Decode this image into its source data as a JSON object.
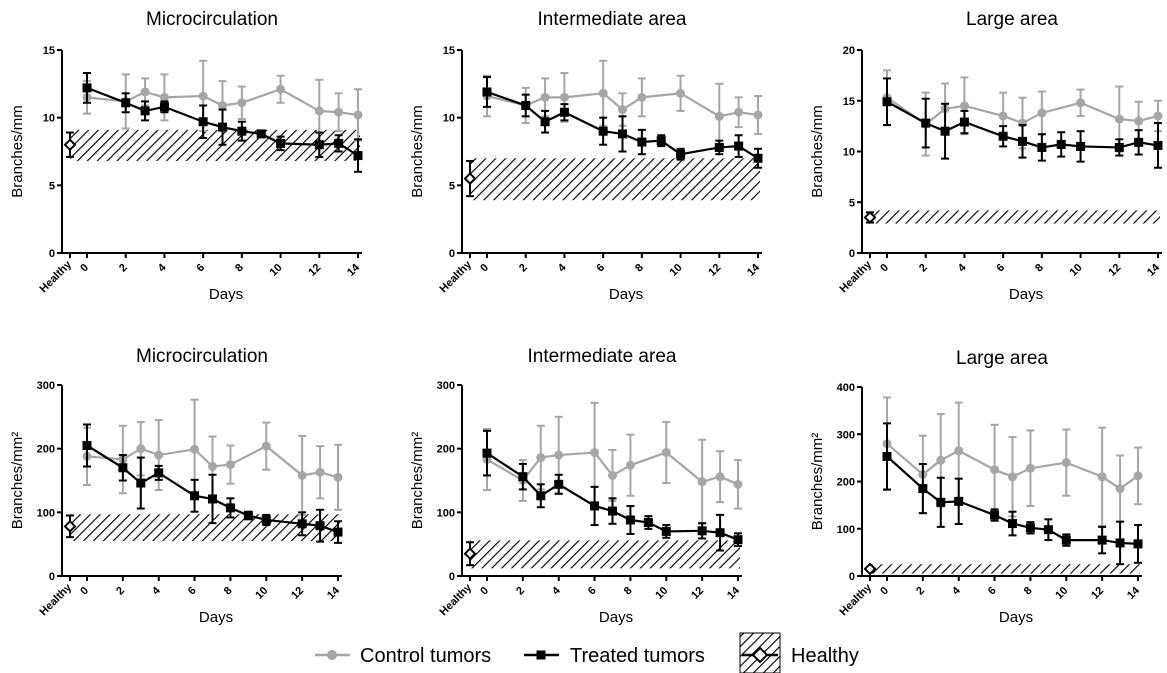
{
  "colors": {
    "control": "#a6a6a6",
    "treated": "#000000",
    "healthy": "#000000"
  },
  "legend": {
    "control": "Control tumors",
    "treated": "Treated tumors",
    "healthy": "Healthy"
  },
  "chart_data": [
    {
      "type": "line",
      "title": "Microcirculation",
      "xlabel": "Days",
      "ylabel": "Branches/mm",
      "ylim": [
        0,
        15
      ],
      "yticks": [
        "0",
        "5",
        "10",
        "15"
      ],
      "xticks": [
        "Healthy",
        "0",
        "2",
        "4",
        "6",
        "8",
        "10",
        "12",
        "14"
      ],
      "healthy": {
        "mean": 8.0,
        "err": 0.9,
        "band": [
          6.8,
          9.1
        ]
      },
      "series": [
        {
          "name": "Control tumors",
          "key": "control",
          "x": [
            0,
            2,
            3,
            4,
            6,
            7,
            8,
            10,
            12,
            13,
            14
          ],
          "y": [
            11.5,
            11.2,
            11.9,
            11.5,
            11.6,
            10.9,
            11.1,
            12.1,
            10.5,
            10.4,
            10.2
          ],
          "err": [
            1.2,
            2.0,
            1.0,
            1.7,
            2.6,
            1.8,
            1.2,
            1.0,
            2.3,
            1.4,
            1.9
          ]
        },
        {
          "name": "Treated tumors",
          "key": "treated",
          "x": [
            0,
            2,
            3,
            4,
            6,
            7,
            8,
            9,
            10,
            12,
            13,
            14
          ],
          "y": [
            12.2,
            11.1,
            10.5,
            10.8,
            9.7,
            9.3,
            9.0,
            8.8,
            8.1,
            8.0,
            8.1,
            7.2
          ],
          "err": [
            1.1,
            0.7,
            0.7,
            0.4,
            1.2,
            1.3,
            0.7,
            0.2,
            0.5,
            0.9,
            0.6,
            1.2
          ]
        }
      ]
    },
    {
      "type": "line",
      "title": "Intermediate area",
      "xlabel": "Days",
      "ylabel": "Branches/mm",
      "ylim": [
        0,
        15
      ],
      "yticks": [
        "0",
        "5",
        "10",
        "15"
      ],
      "xticks": [
        "Healthy",
        "0",
        "2",
        "4",
        "6",
        "8",
        "10",
        "12",
        "14"
      ],
      "healthy": {
        "mean": 5.5,
        "err": 1.3,
        "band": [
          3.9,
          7.0
        ]
      },
      "series": [
        {
          "name": "Control tumors",
          "key": "control",
          "x": [
            0,
            2,
            3,
            4,
            6,
            7,
            8,
            10,
            12,
            13,
            14
          ],
          "y": [
            11.6,
            10.9,
            11.5,
            11.5,
            11.8,
            10.6,
            11.5,
            11.8,
            10.1,
            10.4,
            10.2
          ],
          "err": [
            1.5,
            1.3,
            1.4,
            1.8,
            2.4,
            1.2,
            1.4,
            1.3,
            2.4,
            1.1,
            1.4
          ]
        },
        {
          "name": "Treated tumors",
          "key": "treated",
          "x": [
            0,
            2,
            3,
            4,
            6,
            7,
            8,
            9,
            10,
            12,
            13,
            14
          ],
          "y": [
            11.9,
            10.9,
            9.7,
            10.4,
            9.0,
            8.8,
            8.2,
            8.3,
            7.3,
            7.8,
            7.9,
            7.0
          ],
          "err": [
            1.1,
            0.8,
            0.8,
            0.6,
            1.0,
            1.3,
            0.9,
            0.4,
            0.4,
            0.5,
            0.8,
            0.7
          ]
        }
      ]
    },
    {
      "type": "line",
      "title": "Large area",
      "xlabel": "Days",
      "ylabel": "Branches/mm",
      "ylim": [
        0,
        20
      ],
      "yticks": [
        "0",
        "5",
        "10",
        "15",
        "20"
      ],
      "xticks": [
        "Healthy",
        "0",
        "2",
        "4",
        "6",
        "8",
        "10",
        "12",
        "14"
      ],
      "healthy": {
        "mean": 3.5,
        "err": 0.5,
        "band": [
          2.9,
          4.2
        ]
      },
      "series": [
        {
          "name": "Control tumors",
          "key": "control",
          "x": [
            0,
            2,
            3,
            4,
            6,
            7,
            8,
            10,
            12,
            13,
            14
          ],
          "y": [
            15.3,
            12.7,
            14.2,
            14.5,
            13.5,
            12.8,
            13.8,
            14.8,
            13.2,
            13.0,
            13.5
          ],
          "err": [
            2.7,
            3.1,
            2.5,
            2.8,
            2.3,
            2.5,
            2.1,
            1.3,
            3.2,
            1.9,
            1.5
          ]
        },
        {
          "name": "Treated tumors",
          "key": "treated",
          "x": [
            0,
            2,
            3,
            4,
            6,
            7,
            8,
            9,
            10,
            12,
            13,
            14
          ],
          "y": [
            14.9,
            12.8,
            12.0,
            12.9,
            11.5,
            11.0,
            10.4,
            10.7,
            10.5,
            10.4,
            10.9,
            10.6
          ],
          "err": [
            2.3,
            2.4,
            2.7,
            1.1,
            1.0,
            1.6,
            1.3,
            1.2,
            1.5,
            0.8,
            1.2,
            2.2
          ]
        }
      ]
    },
    {
      "type": "line",
      "title": "Microcirculation",
      "xlabel": "Days",
      "ylabel": "Branches/mm²",
      "ylim": [
        0,
        300
      ],
      "yticks": [
        "0",
        "100",
        "200",
        "300"
      ],
      "xticks": [
        "Healthy",
        "0",
        "2",
        "4",
        "6",
        "8",
        "10",
        "12",
        "14"
      ],
      "healthy": {
        "mean": 78,
        "err": 17,
        "band": [
          55,
          97
        ]
      },
      "series": [
        {
          "name": "Control tumors",
          "key": "control",
          "x": [
            0,
            2,
            3,
            4,
            6,
            7,
            8,
            10,
            12,
            13,
            14
          ],
          "y": [
            188,
            183,
            200,
            190,
            199,
            172,
            175,
            204,
            158,
            163,
            155
          ],
          "err": [
            45,
            53,
            42,
            55,
            78,
            47,
            30,
            37,
            62,
            41,
            51
          ]
        },
        {
          "name": "Treated tumors",
          "key": "treated",
          "x": [
            0,
            2,
            3,
            4,
            6,
            7,
            8,
            9,
            10,
            12,
            13,
            14
          ],
          "y": [
            205,
            170,
            146,
            162,
            126,
            121,
            107,
            95,
            88,
            82,
            79,
            69
          ],
          "err": [
            33,
            20,
            40,
            11,
            25,
            38,
            15,
            6,
            8,
            18,
            25,
            17
          ]
        }
      ]
    },
    {
      "type": "line",
      "title": "Intermediate area",
      "xlabel": "Days",
      "ylabel": "Branches/mm²",
      "ylim": [
        0,
        300
      ],
      "yticks": [
        "0",
        "100",
        "200",
        "300"
      ],
      "xticks": [
        "Healthy",
        "0",
        "2",
        "4",
        "6",
        "8",
        "10",
        "12",
        "14"
      ],
      "healthy": {
        "mean": 35,
        "err": 18,
        "band": [
          12,
          56
        ]
      },
      "series": [
        {
          "name": "Control tumors",
          "key": "control",
          "x": [
            0,
            2,
            3,
            4,
            6,
            7,
            8,
            10,
            12,
            13,
            14
          ],
          "y": [
            183,
            150,
            186,
            190,
            194,
            158,
            174,
            194,
            148,
            156,
            144
          ],
          "err": [
            48,
            32,
            50,
            60,
            78,
            40,
            48,
            48,
            66,
            40,
            38
          ]
        },
        {
          "name": "Treated tumors",
          "key": "treated",
          "x": [
            0,
            2,
            3,
            4,
            6,
            7,
            8,
            9,
            10,
            12,
            13,
            14
          ],
          "y": [
            193,
            156,
            126,
            144,
            110,
            102,
            88,
            84,
            70,
            71,
            68,
            57
          ],
          "err": [
            35,
            20,
            18,
            15,
            30,
            20,
            22,
            10,
            10,
            12,
            28,
            10
          ]
        }
      ]
    },
    {
      "type": "line",
      "title": "Large area",
      "xlabel": "Days",
      "ylabel": "Branches/mm²",
      "ylim": [
        0,
        400
      ],
      "yticks": [
        "0",
        "100",
        "200",
        "300",
        "400"
      ],
      "xticks": [
        "Healthy",
        "0",
        "2",
        "4",
        "6",
        "8",
        "10",
        "12",
        "14"
      ],
      "healthy": {
        "mean": 15,
        "err": 4,
        "band": [
          5,
          25
        ]
      },
      "series": [
        {
          "name": "Control tumors",
          "key": "control",
          "x": [
            0,
            2,
            3,
            4,
            6,
            7,
            8,
            10,
            12,
            13,
            14
          ],
          "y": [
            280,
            215,
            245,
            265,
            225,
            210,
            228,
            240,
            210,
            185,
            212
          ],
          "err": [
            98,
            82,
            98,
            102,
            95,
            84,
            80,
            70,
            104,
            70,
            60
          ]
        },
        {
          "name": "Treated tumors",
          "key": "treated",
          "x": [
            0,
            2,
            3,
            4,
            6,
            7,
            8,
            9,
            10,
            12,
            13,
            14
          ],
          "y": [
            253,
            185,
            156,
            158,
            129,
            111,
            102,
            98,
            76,
            76,
            70,
            68
          ],
          "err": [
            70,
            52,
            52,
            48,
            12,
            25,
            12,
            22,
            12,
            28,
            45,
            40
          ]
        }
      ]
    }
  ]
}
